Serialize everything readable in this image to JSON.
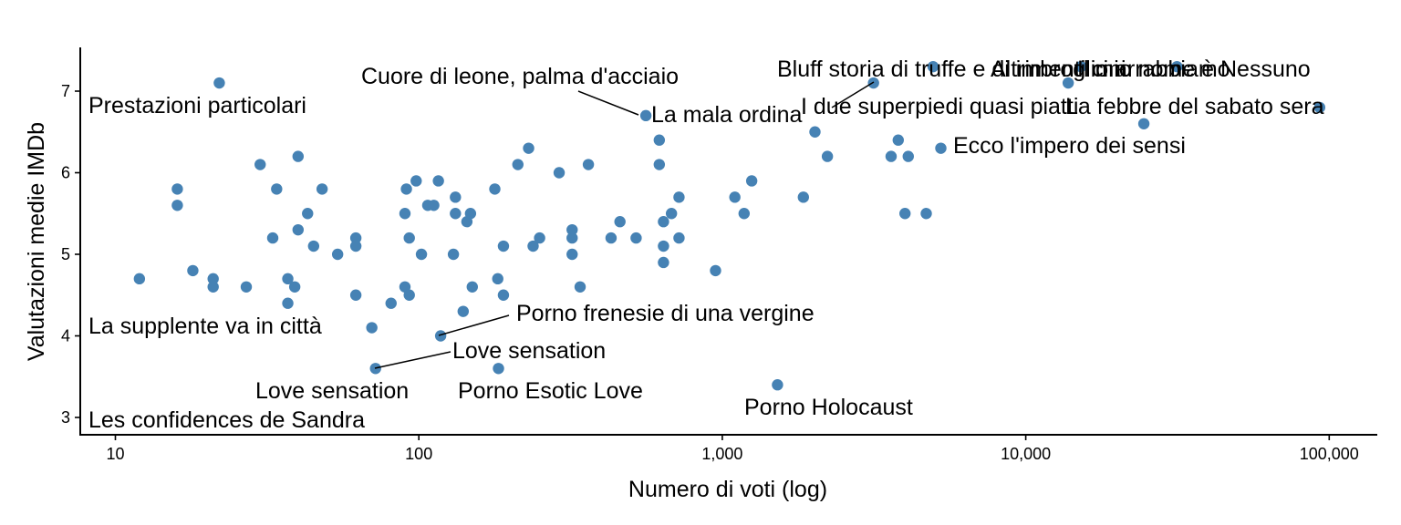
{
  "chart_data": {
    "type": "scatter",
    "xlabel": "Numero di voti (log)",
    "ylabel": "Valutazioni medie IMDb",
    "x_scale": "log10",
    "xlim": [
      8,
      150000
    ],
    "ylim": [
      2.8,
      7.45
    ],
    "x_ticks": [
      10,
      100,
      1000,
      10000,
      100000
    ],
    "x_tick_labels": [
      "10",
      "100",
      "1,000",
      "10,000",
      "100,000"
    ],
    "y_ticks": [
      3,
      4,
      5,
      6,
      7
    ],
    "y_tick_labels": [
      "3",
      "4",
      "5",
      "6",
      "7"
    ],
    "grid": false,
    "point_color": "#4682B4",
    "points": [
      [
        22,
        7.1
      ],
      [
        12,
        4.7
      ],
      [
        16,
        5.8
      ],
      [
        16,
        5.6
      ],
      [
        18,
        4.8
      ],
      [
        21,
        4.7
      ],
      [
        21,
        4.6
      ],
      [
        27,
        4.6
      ],
      [
        30,
        6.1
      ],
      [
        33,
        5.2
      ],
      [
        34,
        5.8
      ],
      [
        37,
        4.7
      ],
      [
        37,
        4.4
      ],
      [
        39,
        4.6
      ],
      [
        40,
        6.2
      ],
      [
        40,
        5.3
      ],
      [
        43,
        5.5
      ],
      [
        45,
        5.1
      ],
      [
        48,
        5.8
      ],
      [
        54,
        5.0
      ],
      [
        62,
        5.2
      ],
      [
        62,
        5.1
      ],
      [
        62,
        4.5
      ],
      [
        70,
        4.1
      ],
      [
        72,
        3.6
      ],
      [
        81,
        4.4
      ],
      [
        90,
        4.6
      ],
      [
        90,
        5.5
      ],
      [
        91,
        5.8
      ],
      [
        93,
        5.2
      ],
      [
        93,
        4.5
      ],
      [
        98,
        5.9
      ],
      [
        102,
        5.0
      ],
      [
        107,
        5.6
      ],
      [
        112,
        5.6
      ],
      [
        116,
        5.9
      ],
      [
        118,
        4.0
      ],
      [
        130,
        5.0
      ],
      [
        132,
        5.7
      ],
      [
        132,
        5.5
      ],
      [
        140,
        4.3
      ],
      [
        144,
        5.4
      ],
      [
        148,
        5.5
      ],
      [
        150,
        4.6
      ],
      [
        178,
        5.8
      ],
      [
        182,
        4.7
      ],
      [
        183,
        3.6
      ],
      [
        190,
        5.1
      ],
      [
        190,
        4.5
      ],
      [
        212,
        6.1
      ],
      [
        230,
        6.3
      ],
      [
        238,
        5.1
      ],
      [
        250,
        5.2
      ],
      [
        290,
        6.0
      ],
      [
        320,
        5.3
      ],
      [
        320,
        5.2
      ],
      [
        320,
        5.0
      ],
      [
        340,
        4.6
      ],
      [
        362,
        6.1
      ],
      [
        430,
        5.2
      ],
      [
        460,
        5.4
      ],
      [
        520,
        5.2
      ],
      [
        560,
        6.7
      ],
      [
        620,
        6.4
      ],
      [
        620,
        6.1
      ],
      [
        640,
        5.4
      ],
      [
        640,
        5.1
      ],
      [
        640,
        4.9
      ],
      [
        680,
        5.5
      ],
      [
        720,
        5.7
      ],
      [
        720,
        5.2
      ],
      [
        950,
        4.8
      ],
      [
        1100,
        5.7
      ],
      [
        1180,
        5.5
      ],
      [
        1250,
        5.9
      ],
      [
        1520,
        3.4
      ],
      [
        1850,
        5.7
      ],
      [
        2020,
        6.5
      ],
      [
        2220,
        6.2
      ],
      [
        3150,
        7.1
      ],
      [
        3600,
        6.2
      ],
      [
        3800,
        6.4
      ],
      [
        4000,
        5.5
      ],
      [
        4100,
        6.2
      ],
      [
        4700,
        5.5
      ],
      [
        4950,
        7.3
      ],
      [
        5250,
        6.3
      ],
      [
        13800,
        7.1
      ],
      [
        15200,
        7.3
      ],
      [
        24500,
        6.6
      ],
      [
        31500,
        7.3
      ],
      [
        93000,
        6.8
      ]
    ],
    "annotations": [
      {
        "text": "Prestazioni particolari",
        "x": 22,
        "y": 7.1
      },
      {
        "text": "Cuore di leone, palma d'acciaio",
        "x": 560,
        "y": 6.7
      },
      {
        "text": "La mala ordina",
        "x": 560,
        "y": 6.7
      },
      {
        "text": "Bluff storia di truffe e di imbroglioni",
        "x": 4950,
        "y": 7.3
      },
      {
        "text": "Altrimenti ci arrabbiamo",
        "x": 15200,
        "y": 7.3
      },
      {
        "text": "Il mio nome è Nessuno",
        "x": 31500,
        "y": 7.3
      },
      {
        "text": "I due superpiedi quasi piatti",
        "x": 3150,
        "y": 7.1
      },
      {
        "text": "La febbre del sabato sera",
        "x": 93000,
        "y": 6.8
      },
      {
        "text": "Ecco l'impero dei sensi",
        "x": 5250,
        "y": 6.3
      },
      {
        "text": "Porno frenesie di una vergine",
        "x": 118,
        "y": 4.0
      },
      {
        "text": "La supplente va in città",
        "x": 70,
        "y": 4.1
      },
      {
        "text": "Love sensation",
        "x": 72,
        "y": 3.6
      },
      {
        "text": "Love sensation",
        "x": 72,
        "y": 3.6
      },
      {
        "text": "Porno Esotic Love",
        "x": 183,
        "y": 3.6
      },
      {
        "text": "Porno Holocaust",
        "x": 1520,
        "y": 3.4
      },
      {
        "text": "Les confidences de Sandra",
        "x": 42,
        "y": 3.0
      }
    ]
  }
}
